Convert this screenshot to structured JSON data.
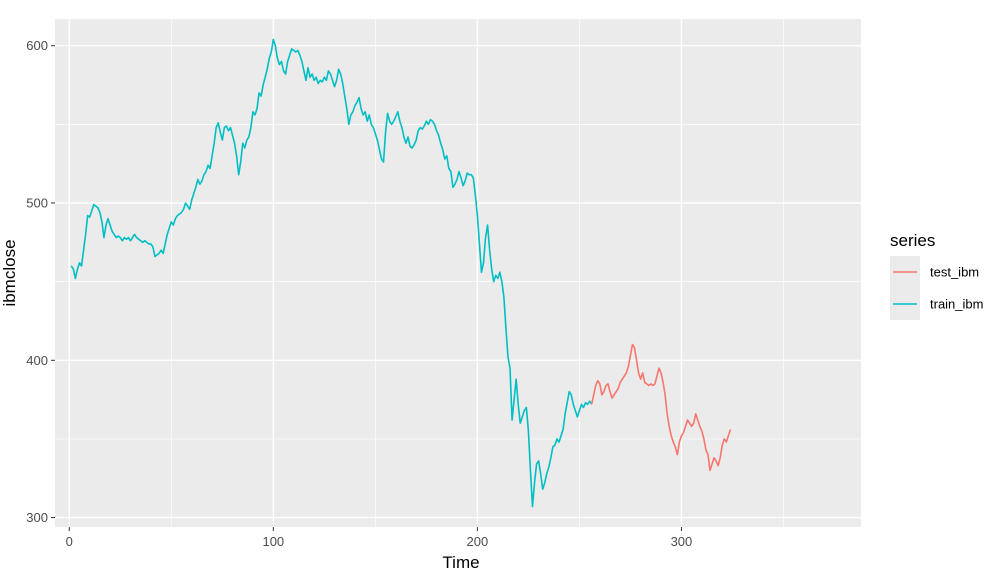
{
  "chart_data": {
    "type": "line",
    "xlabel": "Time",
    "ylabel": "ibmclose",
    "xlim": [
      -7,
      388
    ],
    "ylim": [
      294,
      617
    ],
    "x_ticks": [
      0,
      100,
      200,
      300
    ],
    "y_ticks": [
      300,
      400,
      500,
      600
    ],
    "grid": true,
    "legend": {
      "title": "series",
      "placement": "right"
    },
    "series": [
      {
        "name": "train_ibm",
        "color": "#00BFC4",
        "points": [
          [
            1,
            460
          ],
          [
            2,
            458
          ],
          [
            3,
            452
          ],
          [
            4,
            458
          ],
          [
            5,
            462
          ],
          [
            6,
            460
          ],
          [
            7,
            470
          ],
          [
            8,
            480
          ],
          [
            9,
            492
          ],
          [
            10,
            491
          ],
          [
            11,
            495
          ],
          [
            12,
            499
          ],
          [
            13,
            498
          ],
          [
            14,
            497
          ],
          [
            15,
            494
          ],
          [
            16,
            488
          ],
          [
            17,
            478
          ],
          [
            18,
            486
          ],
          [
            19,
            490
          ],
          [
            20,
            486
          ],
          [
            21,
            482
          ],
          [
            22,
            480
          ],
          [
            23,
            478
          ],
          [
            24,
            479
          ],
          [
            25,
            478
          ],
          [
            26,
            476
          ],
          [
            27,
            478
          ],
          [
            28,
            477
          ],
          [
            29,
            478
          ],
          [
            30,
            476
          ],
          [
            31,
            478
          ],
          [
            32,
            480
          ],
          [
            33,
            478
          ],
          [
            34,
            477
          ],
          [
            35,
            476
          ],
          [
            36,
            475
          ],
          [
            37,
            476
          ],
          [
            38,
            475
          ],
          [
            39,
            474
          ],
          [
            40,
            474
          ],
          [
            41,
            472
          ],
          [
            42,
            466
          ],
          [
            43,
            467
          ],
          [
            44,
            468
          ],
          [
            45,
            470
          ],
          [
            46,
            468
          ],
          [
            47,
            474
          ],
          [
            48,
            480
          ],
          [
            49,
            484
          ],
          [
            50,
            488
          ],
          [
            51,
            486
          ],
          [
            52,
            490
          ],
          [
            53,
            492
          ],
          [
            54,
            493
          ],
          [
            55,
            494
          ],
          [
            56,
            496
          ],
          [
            57,
            500
          ],
          [
            58,
            498
          ],
          [
            59,
            496
          ],
          [
            60,
            502
          ],
          [
            61,
            506
          ],
          [
            62,
            510
          ],
          [
            63,
            515
          ],
          [
            64,
            512
          ],
          [
            65,
            514
          ],
          [
            66,
            518
          ],
          [
            67,
            520
          ],
          [
            68,
            524
          ],
          [
            69,
            522
          ],
          [
            70,
            530
          ],
          [
            71,
            538
          ],
          [
            72,
            548
          ],
          [
            73,
            551
          ],
          [
            74,
            545
          ],
          [
            75,
            540
          ],
          [
            76,
            548
          ],
          [
            77,
            549
          ],
          [
            78,
            546
          ],
          [
            79,
            548
          ],
          [
            80,
            543
          ],
          [
            81,
            538
          ],
          [
            82,
            530
          ],
          [
            83,
            518
          ],
          [
            84,
            526
          ],
          [
            85,
            538
          ],
          [
            86,
            535
          ],
          [
            87,
            540
          ],
          [
            88,
            542
          ],
          [
            89,
            548
          ],
          [
            90,
            558
          ],
          [
            91,
            556
          ],
          [
            92,
            560
          ],
          [
            93,
            570
          ],
          [
            94,
            568
          ],
          [
            95,
            575
          ],
          [
            96,
            580
          ],
          [
            97,
            585
          ],
          [
            98,
            592
          ],
          [
            99,
            596
          ],
          [
            100,
            604
          ],
          [
            101,
            600
          ],
          [
            102,
            592
          ],
          [
            103,
            588
          ],
          [
            104,
            590
          ],
          [
            105,
            584
          ],
          [
            106,
            582
          ],
          [
            107,
            590
          ],
          [
            108,
            594
          ],
          [
            109,
            598
          ],
          [
            110,
            597
          ],
          [
            111,
            596
          ],
          [
            112,
            597
          ],
          [
            113,
            594
          ],
          [
            114,
            590
          ],
          [
            115,
            584
          ],
          [
            116,
            578
          ],
          [
            117,
            586
          ],
          [
            118,
            580
          ],
          [
            119,
            582
          ],
          [
            120,
            578
          ],
          [
            121,
            580
          ],
          [
            122,
            576
          ],
          [
            123,
            578
          ],
          [
            124,
            577
          ],
          [
            125,
            580
          ],
          [
            126,
            578
          ],
          [
            127,
            584
          ],
          [
            128,
            582
          ],
          [
            129,
            578
          ],
          [
            130,
            574
          ],
          [
            131,
            578
          ],
          [
            132,
            585
          ],
          [
            133,
            582
          ],
          [
            134,
            576
          ],
          [
            135,
            568
          ],
          [
            136,
            560
          ],
          [
            137,
            550
          ],
          [
            138,
            556
          ],
          [
            139,
            558
          ],
          [
            140,
            562
          ],
          [
            141,
            564
          ],
          [
            142,
            567
          ],
          [
            143,
            560
          ],
          [
            144,
            556
          ],
          [
            145,
            558
          ],
          [
            146,
            552
          ],
          [
            147,
            556
          ],
          [
            148,
            550
          ],
          [
            149,
            548
          ],
          [
            150,
            544
          ],
          [
            151,
            540
          ],
          [
            152,
            534
          ],
          [
            153,
            528
          ],
          [
            154,
            526
          ],
          [
            155,
            545
          ],
          [
            156,
            557
          ],
          [
            157,
            552
          ],
          [
            158,
            550
          ],
          [
            159,
            552
          ],
          [
            160,
            555
          ],
          [
            161,
            558
          ],
          [
            162,
            552
          ],
          [
            163,
            548
          ],
          [
            164,
            542
          ],
          [
            165,
            538
          ],
          [
            166,
            542
          ],
          [
            167,
            536
          ],
          [
            168,
            535
          ],
          [
            169,
            537
          ],
          [
            170,
            540
          ],
          [
            171,
            546
          ],
          [
            172,
            548
          ],
          [
            173,
            547
          ],
          [
            174,
            549
          ],
          [
            175,
            552
          ],
          [
            176,
            550
          ],
          [
            177,
            553
          ],
          [
            178,
            552
          ],
          [
            179,
            550
          ],
          [
            180,
            546
          ],
          [
            181,
            543
          ],
          [
            182,
            538
          ],
          [
            183,
            534
          ],
          [
            184,
            528
          ],
          [
            185,
            530
          ],
          [
            186,
            522
          ],
          [
            187,
            520
          ],
          [
            188,
            510
          ],
          [
            189,
            512
          ],
          [
            190,
            515
          ],
          [
            191,
            520
          ],
          [
            192,
            516
          ],
          [
            193,
            511
          ],
          [
            194,
            514
          ],
          [
            195,
            519
          ],
          [
            196,
            518
          ],
          [
            197,
            518
          ],
          [
            198,
            516
          ],
          [
            199,
            505
          ],
          [
            200,
            492
          ],
          [
            201,
            474
          ],
          [
            202,
            456
          ],
          [
            203,
            462
          ],
          [
            204,
            478
          ],
          [
            205,
            486
          ],
          [
            206,
            470
          ],
          [
            207,
            458
          ],
          [
            208,
            450
          ],
          [
            209,
            454
          ],
          [
            210,
            452
          ],
          [
            211,
            456
          ],
          [
            212,
            450
          ],
          [
            213,
            440
          ],
          [
            214,
            420
          ],
          [
            215,
            402
          ],
          [
            216,
            395
          ],
          [
            217,
            362
          ],
          [
            218,
            375
          ],
          [
            219,
            388
          ],
          [
            220,
            372
          ],
          [
            221,
            360
          ],
          [
            222,
            364
          ],
          [
            223,
            368
          ],
          [
            224,
            370
          ],
          [
            225,
            355
          ],
          [
            226,
            330
          ],
          [
            227,
            307
          ],
          [
            228,
            322
          ],
          [
            229,
            334
          ],
          [
            230,
            336
          ],
          [
            231,
            328
          ],
          [
            232,
            318
          ],
          [
            233,
            322
          ],
          [
            234,
            328
          ],
          [
            235,
            332
          ],
          [
            236,
            338
          ],
          [
            237,
            345
          ],
          [
            238,
            346
          ],
          [
            239,
            350
          ],
          [
            240,
            348
          ],
          [
            241,
            352
          ],
          [
            242,
            356
          ],
          [
            243,
            366
          ],
          [
            244,
            373
          ],
          [
            245,
            380
          ],
          [
            246,
            378
          ],
          [
            247,
            372
          ],
          [
            248,
            368
          ],
          [
            249,
            364
          ],
          [
            250,
            368
          ],
          [
            251,
            372
          ],
          [
            252,
            370
          ],
          [
            253,
            373
          ],
          [
            254,
            372
          ],
          [
            255,
            374
          ],
          [
            256,
            372
          ]
        ]
      },
      {
        "name": "test_ibm",
        "color": "#F8766D",
        "points": [
          [
            256,
            372
          ],
          [
            257,
            378
          ],
          [
            258,
            384
          ],
          [
            259,
            387
          ],
          [
            260,
            385
          ],
          [
            261,
            378
          ],
          [
            262,
            380
          ],
          [
            263,
            384
          ],
          [
            264,
            385
          ],
          [
            265,
            380
          ],
          [
            266,
            376
          ],
          [
            267,
            378
          ],
          [
            268,
            380
          ],
          [
            269,
            382
          ],
          [
            270,
            386
          ],
          [
            271,
            388
          ],
          [
            272,
            390
          ],
          [
            273,
            392
          ],
          [
            274,
            396
          ],
          [
            275,
            403
          ],
          [
            276,
            410
          ],
          [
            277,
            408
          ],
          [
            278,
            400
          ],
          [
            279,
            392
          ],
          [
            280,
            388
          ],
          [
            281,
            392
          ],
          [
            282,
            386
          ],
          [
            283,
            385
          ],
          [
            284,
            384
          ],
          [
            285,
            385
          ],
          [
            286,
            384
          ],
          [
            287,
            385
          ],
          [
            288,
            390
          ],
          [
            289,
            395
          ],
          [
            290,
            392
          ],
          [
            291,
            386
          ],
          [
            292,
            378
          ],
          [
            293,
            366
          ],
          [
            294,
            358
          ],
          [
            295,
            352
          ],
          [
            296,
            348
          ],
          [
            297,
            345
          ],
          [
            298,
            340
          ],
          [
            299,
            348
          ],
          [
            300,
            352
          ],
          [
            301,
            354
          ],
          [
            302,
            358
          ],
          [
            303,
            362
          ],
          [
            304,
            360
          ],
          [
            305,
            358
          ],
          [
            306,
            360
          ],
          [
            307,
            366
          ],
          [
            308,
            362
          ],
          [
            309,
            358
          ],
          [
            310,
            355
          ],
          [
            311,
            350
          ],
          [
            312,
            343
          ],
          [
            313,
            340
          ],
          [
            314,
            330
          ],
          [
            315,
            334
          ],
          [
            316,
            338
          ],
          [
            317,
            336
          ],
          [
            318,
            333
          ],
          [
            319,
            338
          ],
          [
            320,
            346
          ],
          [
            321,
            350
          ],
          [
            322,
            348
          ],
          [
            323,
            352
          ],
          [
            324,
            356
          ]
        ]
      }
    ]
  }
}
